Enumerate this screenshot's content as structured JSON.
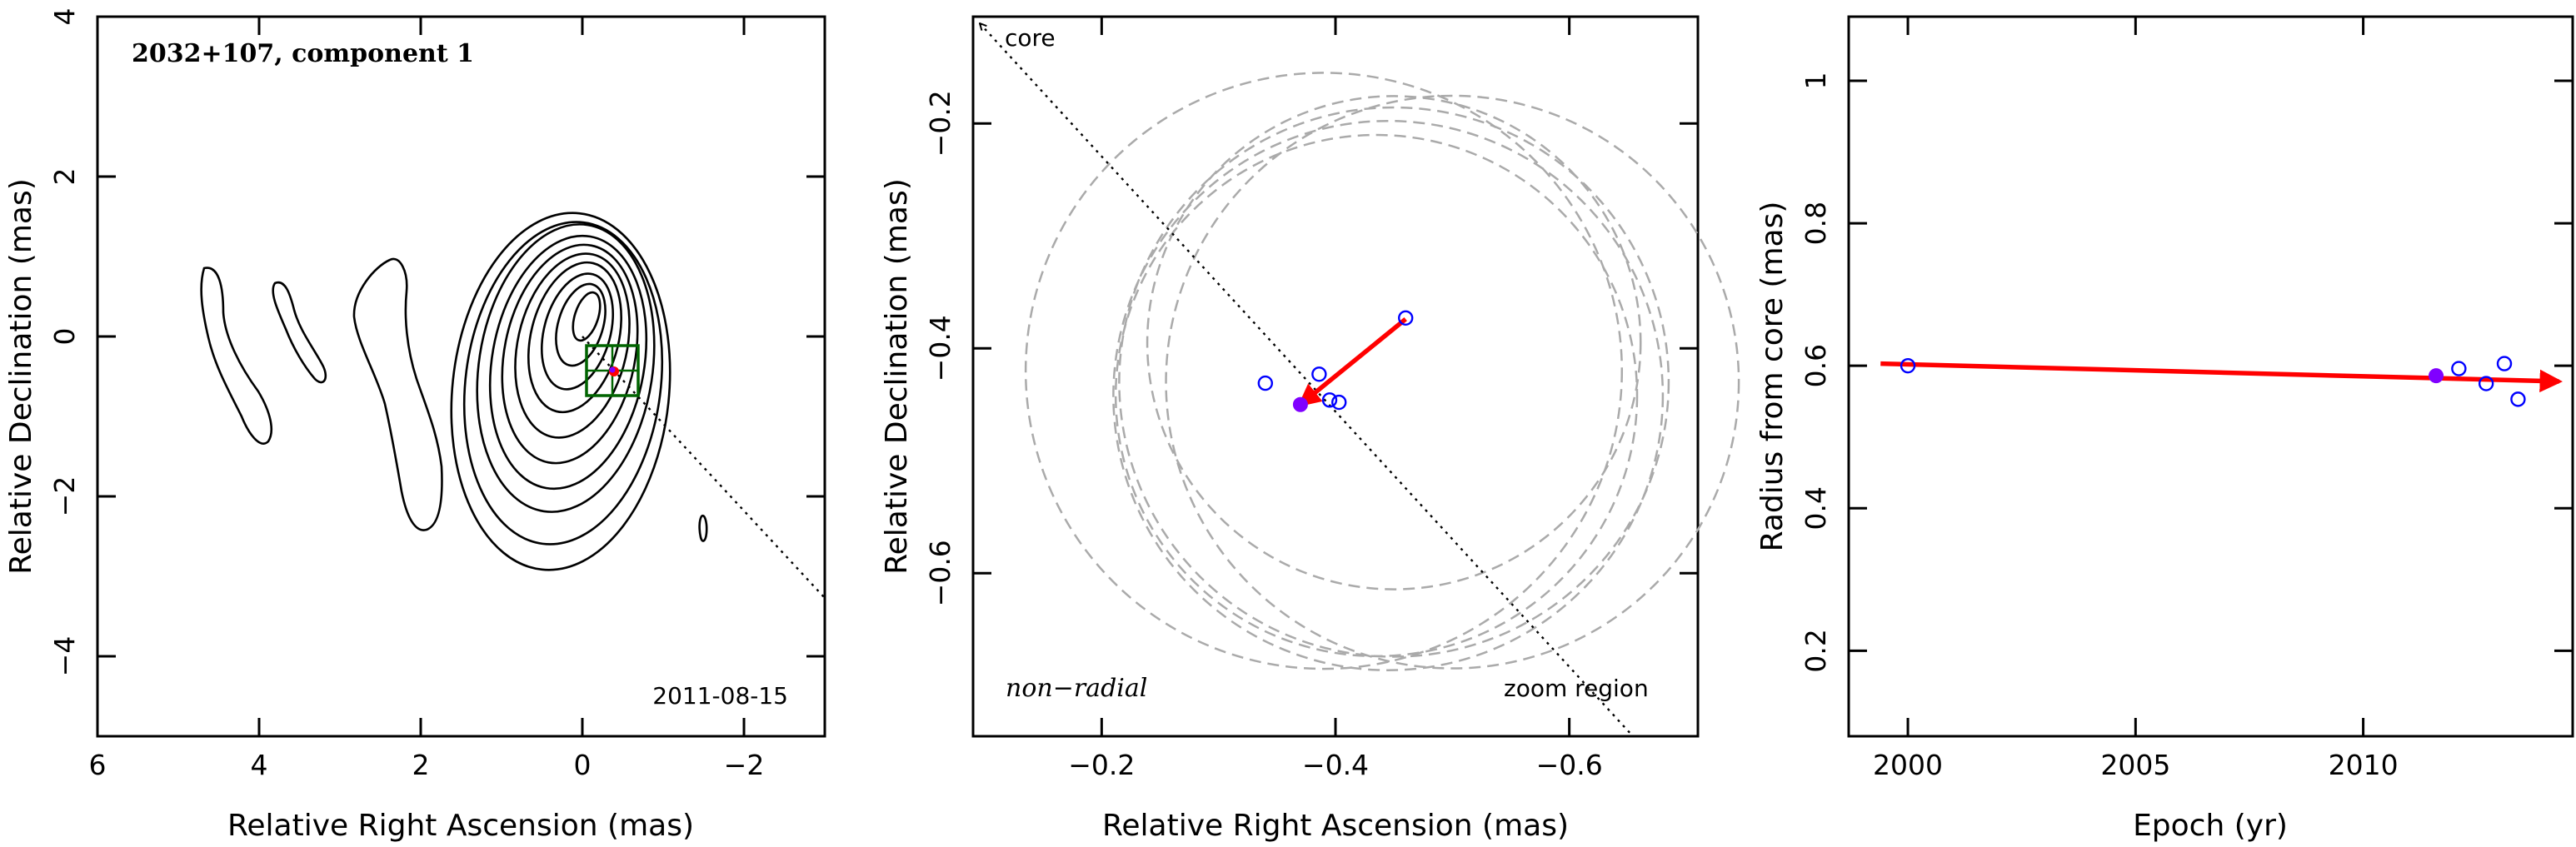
{
  "colors": {
    "axis": "#000000",
    "contour": "#000000",
    "zoom_box": "#006400",
    "open_points": "#0000ff",
    "current_point": "#8000ff",
    "motion_vector": "#ff0000",
    "beam_circles": "#aaaaaa"
  },
  "chart_data": [
    {
      "type": "contour",
      "panel": "left",
      "title": "2032+107, component 1",
      "date": "2011-08-15",
      "xlabel": "Relative Right Ascension (mas)",
      "ylabel": "Relative Declination (mas)",
      "xlim": [
        6,
        -3
      ],
      "ylim": [
        -5,
        4
      ],
      "xticks": [
        6,
        4,
        2,
        0,
        -2
      ],
      "xtick_labels": [
        "6",
        "4",
        "2",
        "0",
        "−2"
      ],
      "yticks": [
        -4,
        -2,
        0,
        2,
        4
      ],
      "ytick_labels": [
        "−4",
        "−2",
        "0",
        "2",
        "4"
      ],
      "core_position": [
        0,
        0
      ],
      "component_position": [
        -0.4,
        -0.45
      ],
      "zoom_box": {
        "x_range": [
          0.1,
          -0.7
        ],
        "y_range": [
          -0.1,
          -0.75
        ]
      },
      "contour_levels": 10
    },
    {
      "type": "scatter",
      "panel": "middle",
      "xlabel": "Relative Right Ascension (mas)",
      "ylabel": "Relative Declination (mas)",
      "xlim": [
        -0.09,
        -0.71
      ],
      "ylim": [
        -0.745,
        -0.105
      ],
      "xticks": [
        -0.2,
        -0.4,
        -0.6
      ],
      "xtick_labels": [
        "−0.2",
        "−0.4",
        "−0.6"
      ],
      "yticks": [
        -0.6,
        -0.4,
        -0.2
      ],
      "ytick_labels": [
        "−0.6",
        "−0.4",
        "−0.2"
      ],
      "labels": {
        "core": "core",
        "motion": "non−radial",
        "region": "zoom region"
      },
      "points": [
        {
          "x": -0.34,
          "y": -0.431
        },
        {
          "x": -0.386,
          "y": -0.423
        },
        {
          "x": -0.395,
          "y": -0.446
        },
        {
          "x": -0.403,
          "y": -0.448
        },
        {
          "x": -0.46,
          "y": -0.373
        }
      ],
      "current_point": {
        "x": -0.37,
        "y": -0.45
      },
      "vector": {
        "from": [
          -0.46,
          -0.374
        ],
        "to": [
          -0.37,
          -0.45
        ]
      },
      "beam_circles": [
        {
          "x": -0.45,
          "y": -0.395,
          "r": 0.211
        },
        {
          "x": -0.45,
          "y": -0.43,
          "r": 0.235
        },
        {
          "x": -0.435,
          "y": -0.442,
          "r": 0.223
        },
        {
          "x": -0.445,
          "y": -0.442,
          "r": 0.235
        },
        {
          "x": -0.5,
          "y": -0.43,
          "r": 0.245
        },
        {
          "x": -0.39,
          "y": -0.42,
          "r": 0.255
        }
      ]
    },
    {
      "type": "scatter",
      "panel": "right",
      "xlabel": "Epoch (yr)",
      "ylabel": "Radius from core (mas)",
      "xlim": [
        1998.7,
        2014.6
      ],
      "ylim": [
        0.08,
        1.09
      ],
      "xticks": [
        2000,
        2005,
        2010
      ],
      "xtick_labels": [
        "2000",
        "2005",
        "2010"
      ],
      "yticks": [
        0.2,
        0.4,
        0.6,
        0.8,
        1.0
      ],
      "ytick_labels": [
        "0.2",
        "0.4",
        "0.6",
        "0.8",
        "1"
      ],
      "points": [
        {
          "x": 2000.0,
          "y": 0.6
        },
        {
          "x": 2012.1,
          "y": 0.596
        },
        {
          "x": 2012.7,
          "y": 0.575
        },
        {
          "x": 2013.1,
          "y": 0.603
        },
        {
          "x": 2013.4,
          "y": 0.553
        }
      ],
      "current_point": {
        "x": 2011.6,
        "y": 0.586
      },
      "trend": {
        "from": [
          1999.4,
          0.603
        ],
        "to": [
          2014.3,
          0.578
        ]
      }
    }
  ]
}
